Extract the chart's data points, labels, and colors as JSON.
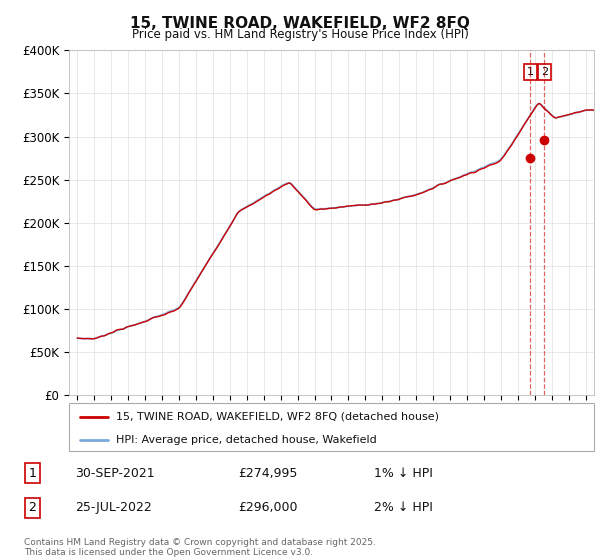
{
  "title": "15, TWINE ROAD, WAKEFIELD, WF2 8FQ",
  "subtitle": "Price paid vs. HM Land Registry's House Price Index (HPI)",
  "ylabel_ticks": [
    "£0",
    "£50K",
    "£100K",
    "£150K",
    "£200K",
    "£250K",
    "£300K",
    "£350K",
    "£400K"
  ],
  "ylim": [
    0,
    400000
  ],
  "xlim_start": 1994.5,
  "xlim_end": 2025.5,
  "legend_line1": "15, TWINE ROAD, WAKEFIELD, WF2 8FQ (detached house)",
  "legend_line2": "HPI: Average price, detached house, Wakefield",
  "annotation1_num": "1",
  "annotation1_date": "30-SEP-2021",
  "annotation1_price": "£274,995",
  "annotation1_hpi": "1% ↓ HPI",
  "annotation2_num": "2",
  "annotation2_date": "25-JUL-2022",
  "annotation2_price": "£296,000",
  "annotation2_hpi": "2% ↓ HPI",
  "footer": "Contains HM Land Registry data © Crown copyright and database right 2025.\nThis data is licensed under the Open Government Licence v3.0.",
  "line1_color": "#cc0000",
  "line2_color": "#7aaadd",
  "marker1_color": "#cc0000",
  "vline_color": "#cc0000",
  "sale1_x": 2021.75,
  "sale2_x": 2022.57,
  "sale1_y": 274995,
  "sale2_y": 296000,
  "background_color": "#ffffff",
  "grid_color": "#e0e0e0",
  "figwidth": 6.0,
  "figheight": 5.6,
  "dpi": 100
}
